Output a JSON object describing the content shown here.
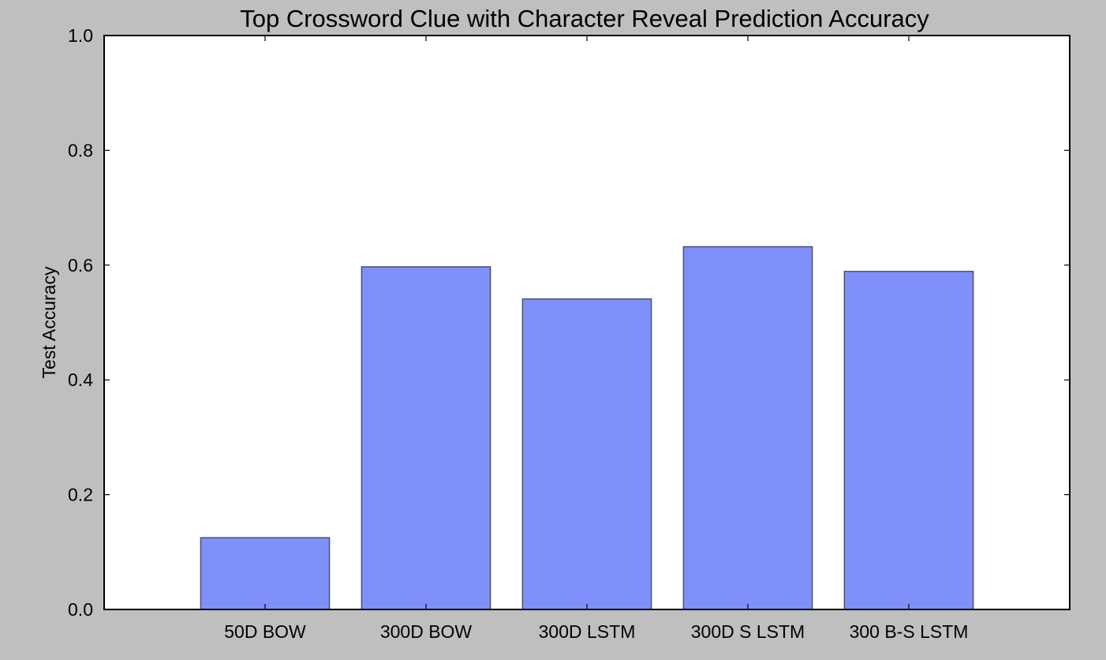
{
  "chart_data": {
    "type": "bar",
    "title": "Top Crossword Clue with Character Reveal Prediction Accuracy",
    "xlabel": "",
    "ylabel": "Test Accuracy",
    "categories": [
      "50D BOW",
      "300D BOW",
      "300D LSTM",
      "300D S LSTM",
      "300 B-S LSTM"
    ],
    "values": [
      0.125,
      0.597,
      0.541,
      0.632,
      0.589
    ],
    "ylim": [
      0,
      1.0
    ],
    "yticks": [
      "0.0",
      "0.2",
      "0.4",
      "0.6",
      "0.8",
      "1.0"
    ],
    "grid": false,
    "legend": "none"
  },
  "colors": {
    "bar_fill": "#8090fa",
    "bar_stroke": "#4a4f72",
    "plot_background": "#ffffff",
    "figure_background": "#bfbfbf"
  }
}
